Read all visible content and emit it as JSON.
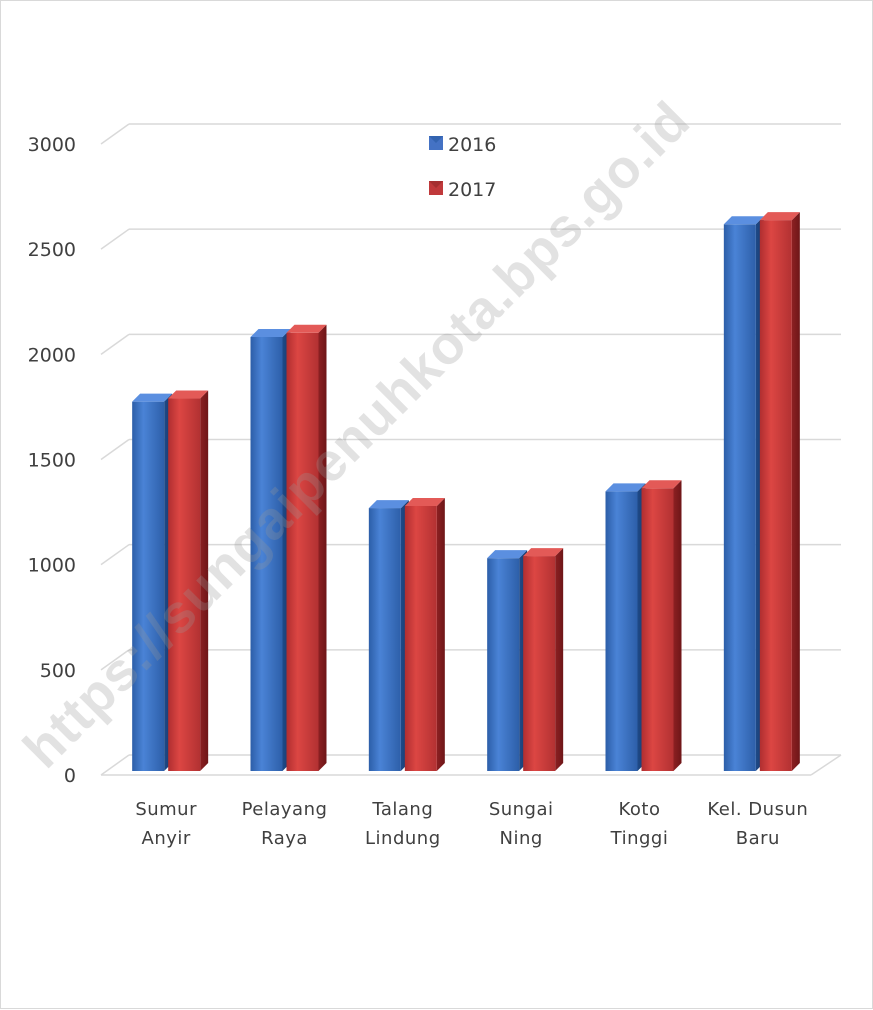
{
  "chart_data": {
    "type": "bar",
    "categories": [
      [
        "Sumur",
        "Anyir"
      ],
      [
        "Pelayang",
        "Raya"
      ],
      [
        "Talang",
        "Lindung"
      ],
      [
        "Sungai",
        "Ning"
      ],
      [
        "Koto",
        "Tinggi"
      ],
      [
        "Kel. Dusun",
        "Baru"
      ]
    ],
    "series": [
      {
        "name": "2016",
        "values": [
          1770,
          2080,
          1260,
          1020,
          1340,
          2620
        ]
      },
      {
        "name": "2017",
        "values": [
          1785,
          2100,
          1270,
          1030,
          1355,
          2640
        ]
      }
    ],
    "ylim": [
      0,
      3000
    ],
    "yticks": [
      0,
      500,
      1000,
      1500,
      2000,
      2500,
      3000
    ],
    "grid": true,
    "legend_position": "top-center",
    "colors": {
      "2016": "#4472c4",
      "2017": "#c0393b"
    }
  },
  "watermark": "https://sungaipenuhkota.bps.go.id"
}
